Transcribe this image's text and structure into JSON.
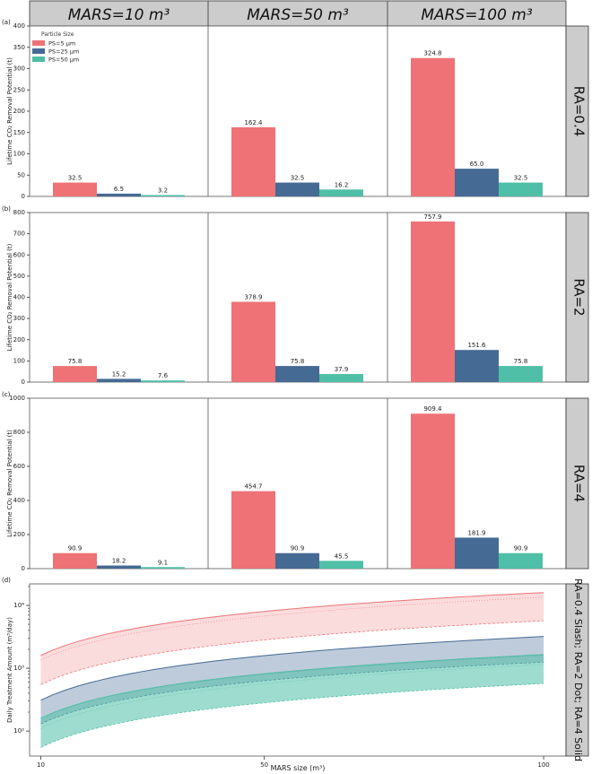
{
  "col_headers": [
    "MARS=10 m³",
    "MARS=50 m³",
    "MARS=100 m³"
  ],
  "row_headers": [
    "RA=0.4",
    "RA=2",
    "RA=4"
  ],
  "bottom_right_header": "RA=0.4 Slash; RA=2 Dot; RA=4 Solid",
  "panel_labels": [
    "(a)",
    "(b)",
    "(c)",
    "(d)"
  ],
  "ylabel_bars": "Lifetime CO₂ Removal Potential (t)",
  "ylabel_bottom": "Daily Treatment Amount (m³/day)",
  "xlabel_bottom": "MARS size (m³)",
  "legend_title": "Particle Size",
  "colors": {
    "PS=5 µm": "#ee7276",
    "PS=25 µm": "#456a94",
    "PS=50 µm": "#4fbfa7",
    "header_bg": "#cccccc"
  },
  "chart_data": [
    {
      "type": "bar",
      "ylim": [
        0,
        400
      ],
      "yticks": [
        0,
        50,
        100,
        150,
        200,
        250,
        300,
        350,
        400
      ],
      "groups": [
        "MARS=10 m³",
        "MARS=50 m³",
        "MARS=100 m³"
      ],
      "series": [
        {
          "name": "PS=5 µm",
          "values": [
            32.5,
            162.4,
            324.8
          ]
        },
        {
          "name": "PS=25 µm",
          "values": [
            6.5,
            32.5,
            65.0
          ]
        },
        {
          "name": "PS=50 µm",
          "values": [
            3.2,
            16.2,
            32.5
          ]
        }
      ]
    },
    {
      "type": "bar",
      "ylim": [
        0,
        800
      ],
      "yticks": [
        0,
        100,
        200,
        300,
        400,
        500,
        600,
        700,
        800
      ],
      "groups": [
        "MARS=10 m³",
        "MARS=50 m³",
        "MARS=100 m³"
      ],
      "series": [
        {
          "name": "PS=5 µm",
          "values": [
            75.8,
            378.9,
            757.9
          ]
        },
        {
          "name": "PS=25 µm",
          "values": [
            15.2,
            75.8,
            151.6
          ]
        },
        {
          "name": "PS=50 µm",
          "values": [
            7.6,
            37.9,
            75.8
          ]
        }
      ]
    },
    {
      "type": "bar",
      "ylim": [
        0,
        1000
      ],
      "yticks": [
        0,
        200,
        400,
        600,
        800,
        1000
      ],
      "groups": [
        "MARS=10 m³",
        "MARS=50 m³",
        "MARS=100 m³"
      ],
      "series": [
        {
          "name": "PS=5 µm",
          "values": [
            90.9,
            454.7,
            909.4
          ]
        },
        {
          "name": "PS=25 µm",
          "values": [
            18.2,
            90.9,
            181.9
          ]
        },
        {
          "name": "PS=50 µm",
          "values": [
            9.1,
            45.5,
            90.9
          ]
        }
      ]
    },
    {
      "type": "area",
      "log_y": true,
      "xlim": [
        8,
        104
      ],
      "ylim": [
        40,
        22000
      ],
      "xticks": [
        10,
        50,
        100
      ],
      "series": [
        {
          "name": "PS=5 µm",
          "low": [
            550,
            5700
          ],
          "high": [
            1600,
            16000
          ],
          "mid": [
            1350,
            13500
          ]
        },
        {
          "name": "PS=25 µm",
          "low": [
            130,
            1250
          ],
          "high": [
            310,
            3200
          ],
          "mid": [
            160,
            1600
          ]
        },
        {
          "name": "PS=50 µm",
          "low": [
            55,
            570
          ],
          "high": [
            160,
            1650
          ],
          "mid": [
            110,
            1150
          ]
        }
      ]
    }
  ]
}
